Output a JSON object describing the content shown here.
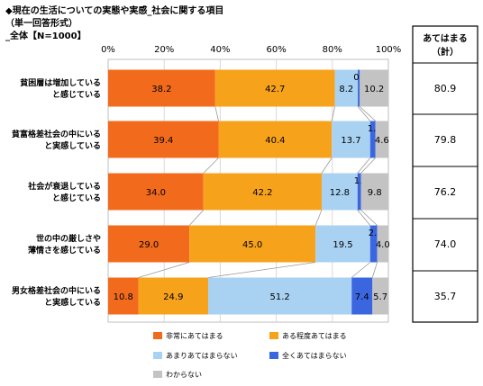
{
  "header": {
    "title": "◆現在の生活についての実態や実感_社会に関する項目",
    "subtitle": "（単一回答形式）",
    "base": "_全体【N=1000】"
  },
  "summary": {
    "header_line1": "あてはまる",
    "header_line2": "（計）",
    "values": [
      "80.9",
      "79.8",
      "76.2",
      "74.0",
      "35.7"
    ]
  },
  "chart_data": {
    "type": "bar",
    "orientation": "horizontal",
    "stacked": true,
    "categories": [
      [
        "貧困層は増加している",
        "と感じている"
      ],
      [
        "貧富格差社会の中にいる",
        "と実感している"
      ],
      [
        "社会が衰退している",
        "と感じている"
      ],
      [
        "世の中の厳しさや",
        "薄情さを感じている"
      ],
      [
        "男女格差社会の中にいる",
        "と実感している"
      ]
    ],
    "x_ticks": [
      "0%",
      "20%",
      "40%",
      "60%",
      "80%",
      "100%"
    ],
    "xlim": [
      0,
      100
    ],
    "series": [
      {
        "name": "非常にあてはまる",
        "color": "#f26b1d",
        "values": [
          38.2,
          39.4,
          34.0,
          29.0,
          10.8
        ]
      },
      {
        "name": "ある程度あてはまる",
        "color": "#f7a21b",
        "values": [
          42.7,
          40.4,
          42.2,
          45.0,
          24.9
        ]
      },
      {
        "name": "あまりあてはまらない",
        "color": "#a9d2f2",
        "values": [
          8.2,
          13.7,
          12.8,
          19.5,
          51.2
        ]
      },
      {
        "name": "全くあてはまらない",
        "color": "#3a66e0",
        "values": [
          0.7,
          1.9,
          1.2,
          2.5,
          7.4
        ]
      },
      {
        "name": "わからない",
        "color": "#c3c3c3",
        "values": [
          10.2,
          4.6,
          9.8,
          4.0,
          5.7
        ]
      }
    ],
    "legend_position": "bottom"
  }
}
